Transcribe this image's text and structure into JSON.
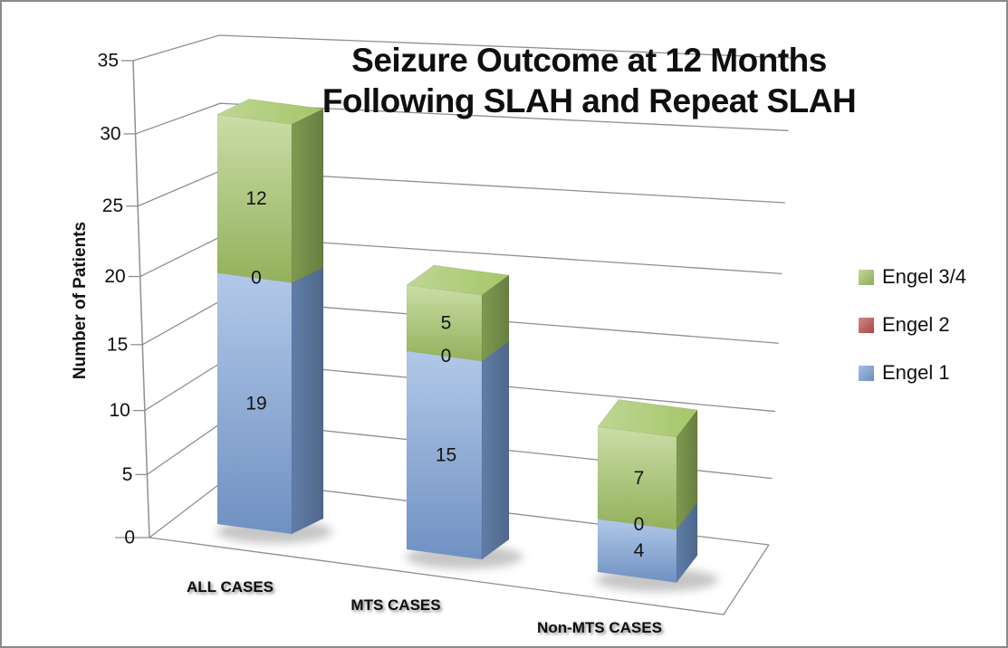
{
  "chart_data": {
    "type": "bar",
    "variant": "3d-stacked-column",
    "title": "Seizure Outcome at 12 Months Following SLAH and Repeat SLAH",
    "title_lines": [
      "Seizure Outcome at 12 Months",
      "Following SLAH and Repeat SLAH"
    ],
    "categories": [
      "ALL CASES",
      "MTS CASES",
      "Non-MTS CASES"
    ],
    "series": [
      {
        "name": "Engel 1",
        "color": "#7ba1d7",
        "values": [
          19,
          15,
          4
        ]
      },
      {
        "name": "Engel 2",
        "color": "#c0504d",
        "values": [
          0,
          0,
          0
        ]
      },
      {
        "name": "Engel 3/4",
        "color": "#a3c566",
        "values": [
          12,
          5,
          7
        ]
      }
    ],
    "totals": [
      31,
      20,
      11
    ],
    "ylabel": "Number of Patients",
    "ylim": [
      0,
      35
    ],
    "yticks": [
      0,
      5,
      10,
      15,
      20,
      25,
      30,
      35
    ],
    "grid": true,
    "segment_labels": true,
    "legend_position": "right",
    "legend_order": [
      "Engel 3/4",
      "Engel 2",
      "Engel 1"
    ],
    "gridline_color": "#8f8f8f",
    "frame_border_color": "#8a8a8a",
    "background": "#ffffff",
    "text_color": "#111111"
  }
}
